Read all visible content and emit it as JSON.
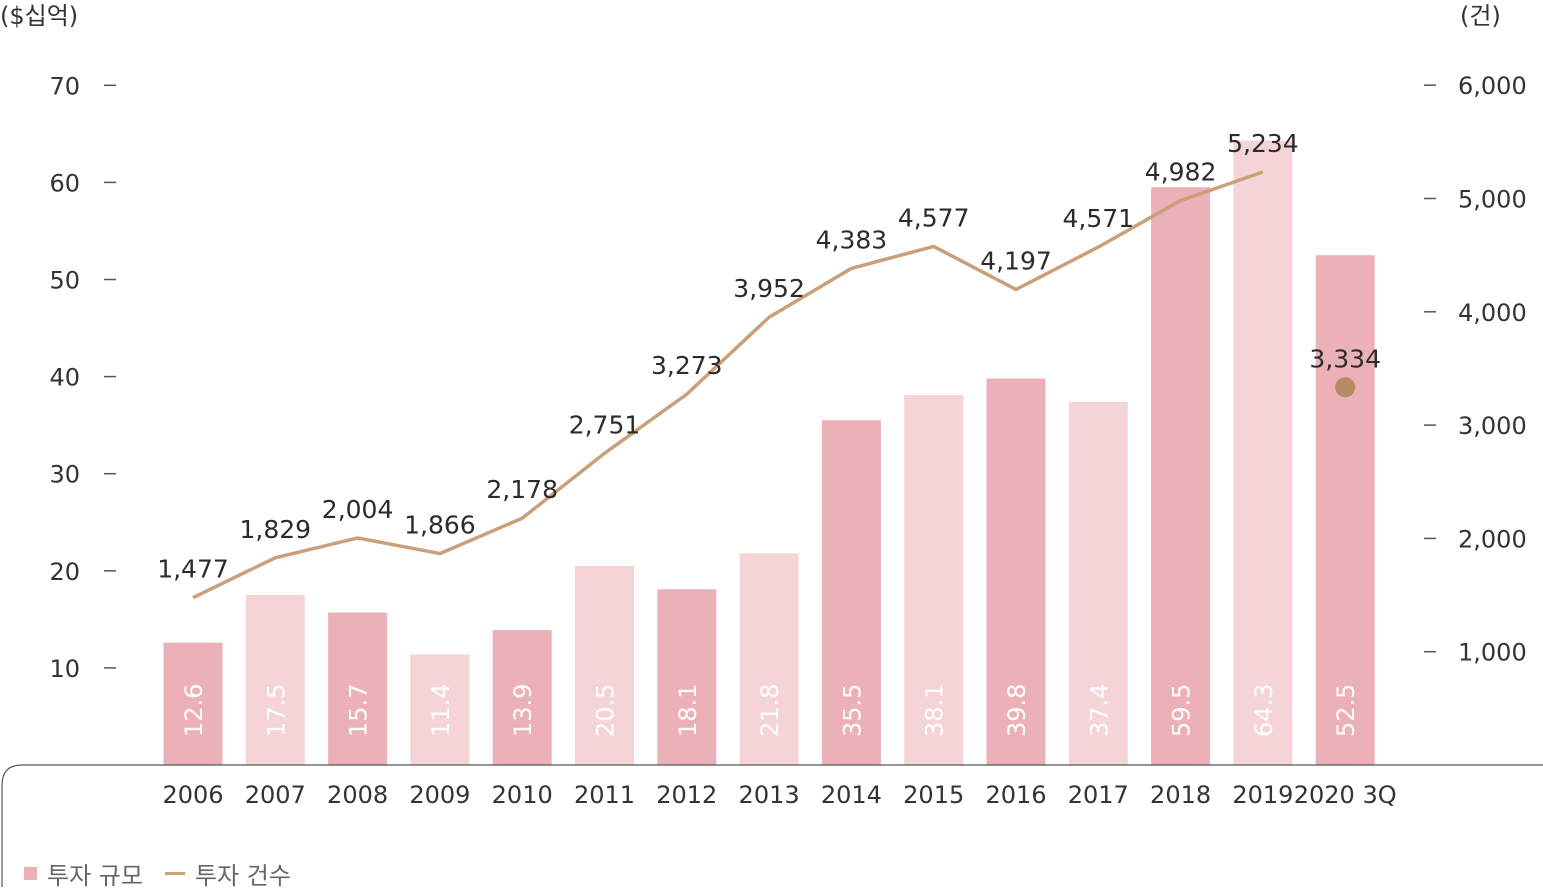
{
  "chart_data": {
    "type": "bar",
    "categories": [
      "2006",
      "2007",
      "2008",
      "2009",
      "2010",
      "2011",
      "2012",
      "2013",
      "2014",
      "2015",
      "2016",
      "2017",
      "2018",
      "2019",
      "2020 3Q"
    ],
    "series": [
      {
        "name": "투자 규모",
        "type": "bar",
        "axis": "left",
        "values": [
          12.6,
          17.5,
          15.7,
          11.4,
          13.9,
          20.5,
          18.1,
          21.8,
          35.5,
          38.1,
          39.8,
          37.4,
          59.5,
          64.3,
          52.5
        ],
        "labels": [
          "12.6",
          "17.5",
          "15.7",
          "11.4",
          "13.9",
          "20.5",
          "18.1",
          "21.8",
          "35.5",
          "38.1",
          "39.8",
          "37.4",
          "59.5",
          "64.3",
          "52.5"
        ]
      },
      {
        "name": "투자 건수",
        "type": "line",
        "axis": "right",
        "values": [
          1477,
          1829,
          2004,
          1866,
          2178,
          2751,
          3273,
          3952,
          4383,
          4577,
          4197,
          4571,
          4982,
          5234,
          3334
        ],
        "labels": [
          "1,477",
          "1,829",
          "2,004",
          "1,866",
          "2,178",
          "2,751",
          "3,273",
          "3,952",
          "4,383",
          "4,577",
          "4,197",
          "4,571",
          "4,982",
          "5,234",
          "3,334"
        ]
      }
    ],
    "left_axis": {
      "unit": "($십억)",
      "range": [
        0,
        70
      ],
      "ticks": [
        "10",
        "20",
        "30",
        "40",
        "50",
        "60",
        "70"
      ]
    },
    "right_axis": {
      "unit": "(건)",
      "range": [
        0,
        6000
      ],
      "ticks": [
        "1,000",
        "2,000",
        "3,000",
        "4,000",
        "5,000",
        "6,000"
      ]
    },
    "grid": false,
    "legend_position": "bottom-left",
    "colors": {
      "bar_dark": "#ecb1b8",
      "bar_light": "#f4d4d7",
      "line": "#c9a079",
      "point": "#b58a65"
    }
  },
  "legend": {
    "bar_label": "투자 규모",
    "line_label": "투자 건수"
  }
}
